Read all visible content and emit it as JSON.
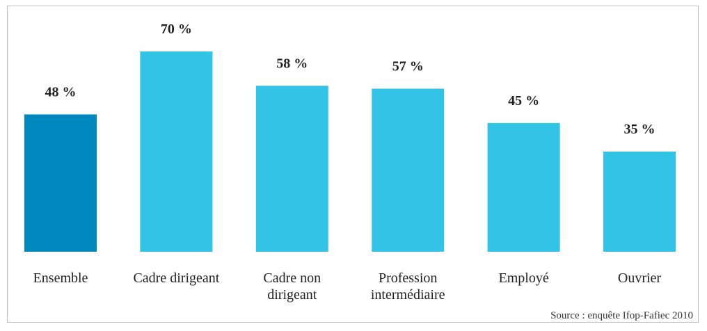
{
  "chart_data": {
    "type": "bar",
    "categories": [
      "Ensemble",
      "Cadre dirigeant",
      "Cadre non dirigeant",
      "Profession intermédiaire",
      "Employé",
      "Ouvrier"
    ],
    "values": [
      48,
      70,
      58,
      57,
      45,
      35
    ],
    "value_labels": [
      "48 %",
      "70 %",
      "58 %",
      "57 %",
      "45 %",
      "35 %"
    ],
    "colors": [
      "#0088bf",
      "#33c3e6",
      "#33c3e6",
      "#33c3e6",
      "#33c3e6",
      "#33c3e6"
    ],
    "source": "Source : enquête Ifop-Fafiec 2010"
  }
}
